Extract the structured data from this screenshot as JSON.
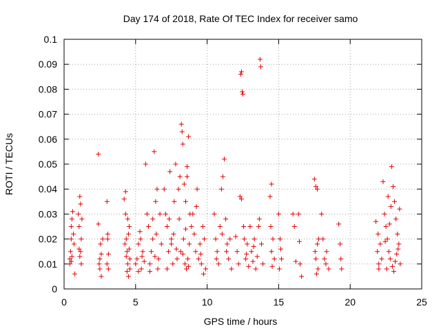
{
  "chart_data": {
    "type": "scatter",
    "title": "Day 174 of 2018, Rate Of TEC Index for receiver samo",
    "xlabel": "GPS time / hours",
    "ylabel": "ROTI / TECUs",
    "xlim": [
      0,
      25
    ],
    "ylim": [
      0,
      0.1
    ],
    "xticks": [
      "0",
      "5",
      "10",
      "15",
      "20",
      "25"
    ],
    "yticks": [
      "0",
      "0.01",
      "0.02",
      "0.03",
      "0.04",
      "0.05",
      "0.06",
      "0.07",
      "0.08",
      "0.09",
      "0.1"
    ],
    "grid": true,
    "marker": "+",
    "color": "#e00000",
    "series": [
      {
        "points": [
          [
            0.4,
            0.012
          ],
          [
            0.45,
            0.015
          ],
          [
            0.5,
            0.02
          ],
          [
            0.5,
            0.025
          ],
          [
            0.55,
            0.028
          ],
          [
            0.6,
            0.031
          ],
          [
            0.4,
            0.01
          ],
          [
            0.55,
            0.013
          ],
          [
            0.65,
            0.022
          ],
          [
            0.7,
            0.018
          ],
          [
            0.75,
            0.006
          ],
          [
            0.5,
            0.011
          ],
          [
            1.0,
            0.03
          ],
          [
            1.05,
            0.025
          ],
          [
            1.1,
            0.037
          ],
          [
            1.15,
            0.034
          ],
          [
            1.2,
            0.02
          ],
          [
            1.1,
            0.013
          ],
          [
            1.15,
            0.015
          ],
          [
            1.2,
            0.01
          ],
          [
            1.25,
            0.028
          ],
          [
            1.05,
            0.016
          ],
          [
            2.4,
            0.054
          ],
          [
            2.4,
            0.026
          ],
          [
            2.5,
            0.012
          ],
          [
            2.5,
            0.008
          ],
          [
            2.55,
            0.018
          ],
          [
            2.6,
            0.005
          ],
          [
            2.7,
            0.02
          ],
          [
            2.6,
            0.014
          ],
          [
            2.45,
            0.01
          ],
          [
            3.0,
            0.035
          ],
          [
            3.05,
            0.02
          ],
          [
            3.1,
            0.014
          ],
          [
            3.0,
            0.01
          ],
          [
            3.1,
            0.008
          ],
          [
            3.05,
            0.022
          ],
          [
            4.2,
            0.036
          ],
          [
            4.3,
            0.03
          ],
          [
            4.35,
            0.02
          ],
          [
            4.4,
            0.015
          ],
          [
            4.45,
            0.01
          ],
          [
            4.5,
            0.005
          ],
          [
            4.55,
            0.025
          ],
          [
            4.3,
            0.039
          ],
          [
            4.6,
            0.012
          ],
          [
            4.4,
            0.007
          ],
          [
            4.25,
            0.018
          ],
          [
            4.5,
            0.022
          ],
          [
            4.6,
            0.008
          ],
          [
            4.35,
            0.013
          ],
          [
            4.45,
            0.028
          ],
          [
            4.55,
            0.016
          ],
          [
            5.0,
            0.01
          ],
          [
            5.1,
            0.012
          ],
          [
            5.2,
            0.018
          ],
          [
            5.3,
            0.023
          ],
          [
            5.4,
            0.008
          ],
          [
            5.5,
            0.015
          ],
          [
            5.6,
            0.011
          ],
          [
            5.2,
            0.007
          ],
          [
            5.35,
            0.02
          ],
          [
            5.45,
            0.013
          ],
          [
            5.7,
            0.05
          ],
          [
            5.8,
            0.03
          ],
          [
            5.9,
            0.025
          ],
          [
            6.0,
            0.01
          ],
          [
            6.1,
            0.015
          ],
          [
            6.2,
            0.02
          ],
          [
            6.3,
            0.055
          ],
          [
            6.4,
            0.035
          ],
          [
            6.5,
            0.04
          ],
          [
            6.6,
            0.012
          ],
          [
            6.7,
            0.03
          ],
          [
            6.8,
            0.018
          ],
          [
            6.0,
            0.007
          ],
          [
            6.2,
            0.028
          ],
          [
            6.45,
            0.022
          ],
          [
            6.55,
            0.008
          ],
          [
            6.35,
            0.013
          ],
          [
            7.0,
            0.04
          ],
          [
            7.1,
            0.03
          ],
          [
            7.2,
            0.025
          ],
          [
            7.3,
            0.015
          ],
          [
            7.4,
            0.047
          ],
          [
            7.5,
            0.02
          ],
          [
            7.6,
            0.01
          ],
          [
            7.7,
            0.035
          ],
          [
            7.8,
            0.05
          ],
          [
            7.9,
            0.012
          ],
          [
            7.2,
            0.008
          ],
          [
            7.5,
            0.018
          ],
          [
            7.35,
            0.028
          ],
          [
            7.65,
            0.022
          ],
          [
            7.85,
            0.016
          ],
          [
            8.0,
            0.04
          ],
          [
            8.1,
            0.045
          ],
          [
            8.2,
            0.066
          ],
          [
            8.25,
            0.063
          ],
          [
            8.3,
            0.058
          ],
          [
            8.4,
            0.042
          ],
          [
            8.5,
            0.035
          ],
          [
            8.6,
            0.049
          ],
          [
            8.7,
            0.061
          ],
          [
            8.8,
            0.03
          ],
          [
            8.9,
            0.025
          ],
          [
            8.15,
            0.015
          ],
          [
            8.35,
            0.02
          ],
          [
            8.45,
            0.01
          ],
          [
            8.55,
            0.008
          ],
          [
            8.65,
            0.012
          ],
          [
            8.75,
            0.018
          ],
          [
            8.05,
            0.028
          ],
          [
            8.6,
            0.045
          ],
          [
            8.5,
            0.024
          ],
          [
            8.3,
            0.014
          ],
          [
            8.7,
            0.009
          ],
          [
            9.0,
            0.03
          ],
          [
            9.1,
            0.022
          ],
          [
            9.2,
            0.015
          ],
          [
            9.3,
            0.04
          ],
          [
            9.4,
            0.012
          ],
          [
            9.5,
            0.018
          ],
          [
            9.6,
            0.01
          ],
          [
            9.7,
            0.025
          ],
          [
            9.8,
            0.02
          ],
          [
            9.9,
            0.008
          ],
          [
            9.25,
            0.033
          ],
          [
            9.55,
            0.014
          ],
          [
            9.75,
            0.006
          ],
          [
            10.5,
            0.03
          ],
          [
            10.6,
            0.02
          ],
          [
            10.7,
            0.015
          ],
          [
            10.8,
            0.01
          ],
          [
            10.9,
            0.025
          ],
          [
            11.0,
            0.04
          ],
          [
            11.1,
            0.045
          ],
          [
            11.2,
            0.052
          ],
          [
            11.3,
            0.028
          ],
          [
            11.4,
            0.018
          ],
          [
            11.5,
            0.012
          ],
          [
            11.6,
            0.02
          ],
          [
            11.7,
            0.008
          ],
          [
            10.65,
            0.012
          ],
          [
            11.05,
            0.022
          ],
          [
            11.35,
            0.015
          ],
          [
            12.0,
            0.021
          ],
          [
            12.1,
            0.015
          ],
          [
            12.2,
            0.01
          ],
          [
            12.3,
            0.037
          ],
          [
            12.35,
            0.086
          ],
          [
            12.4,
            0.087
          ],
          [
            12.45,
            0.079
          ],
          [
            12.5,
            0.078
          ],
          [
            12.6,
            0.02
          ],
          [
            12.7,
            0.012
          ],
          [
            12.8,
            0.018
          ],
          [
            12.9,
            0.009
          ],
          [
            12.4,
            0.036
          ],
          [
            12.55,
            0.025
          ],
          [
            12.75,
            0.014
          ],
          [
            13.0,
            0.025
          ],
          [
            13.1,
            0.015
          ],
          [
            13.2,
            0.011
          ],
          [
            13.3,
            0.02
          ],
          [
            13.4,
            0.008
          ],
          [
            13.5,
            0.013
          ],
          [
            13.6,
            0.025
          ],
          [
            13.7,
            0.092
          ],
          [
            13.75,
            0.089
          ],
          [
            13.8,
            0.018
          ],
          [
            13.9,
            0.01
          ],
          [
            13.65,
            0.028
          ],
          [
            13.25,
            0.017
          ],
          [
            14.4,
            0.037
          ],
          [
            14.5,
            0.042
          ],
          [
            14.6,
            0.02
          ],
          [
            14.7,
            0.012
          ],
          [
            14.5,
            0.015
          ],
          [
            14.55,
            0.009
          ],
          [
            14.45,
            0.025
          ],
          [
            15.0,
            0.03
          ],
          [
            15.1,
            0.02
          ],
          [
            15.2,
            0.012
          ],
          [
            15.05,
            0.008
          ],
          [
            15.15,
            0.016
          ],
          [
            16.0,
            0.03
          ],
          [
            16.1,
            0.025
          ],
          [
            16.2,
            0.011
          ],
          [
            16.4,
            0.03
          ],
          [
            16.5,
            0.01
          ],
          [
            16.6,
            0.005
          ],
          [
            16.45,
            0.019
          ],
          [
            17.5,
            0.044
          ],
          [
            17.6,
            0.041
          ],
          [
            17.7,
            0.04
          ],
          [
            17.8,
            0.02
          ],
          [
            17.6,
            0.012
          ],
          [
            17.7,
            0.018
          ],
          [
            17.75,
            0.008
          ],
          [
            17.65,
            0.006
          ],
          [
            17.55,
            0.015
          ],
          [
            18.0,
            0.03
          ],
          [
            18.2,
            0.012
          ],
          [
            18.3,
            0.01
          ],
          [
            18.5,
            0.008
          ],
          [
            18.1,
            0.02
          ],
          [
            18.35,
            0.015
          ],
          [
            19.2,
            0.026
          ],
          [
            19.3,
            0.018
          ],
          [
            19.4,
            0.008
          ],
          [
            19.35,
            0.012
          ],
          [
            21.8,
            0.027
          ],
          [
            21.9,
            0.015
          ],
          [
            22.0,
            0.01
          ],
          [
            22.1,
            0.018
          ],
          [
            22.2,
            0.012
          ],
          [
            22.0,
            0.008
          ],
          [
            21.95,
            0.022
          ],
          [
            22.3,
            0.043
          ],
          [
            22.4,
            0.03
          ],
          [
            22.5,
            0.025
          ],
          [
            22.6,
            0.02
          ],
          [
            22.7,
            0.015
          ],
          [
            22.8,
            0.012
          ],
          [
            22.9,
            0.049
          ],
          [
            23.0,
            0.041
          ],
          [
            23.1,
            0.035
          ],
          [
            23.2,
            0.028
          ],
          [
            23.3,
            0.022
          ],
          [
            23.4,
            0.018
          ],
          [
            23.5,
            0.01
          ],
          [
            22.85,
            0.033
          ],
          [
            23.05,
            0.007
          ],
          [
            23.25,
            0.014
          ],
          [
            23.45,
            0.032
          ],
          [
            22.55,
            0.008
          ],
          [
            22.65,
            0.037
          ],
          [
            22.75,
            0.026
          ],
          [
            23.15,
            0.011
          ],
          [
            23.35,
            0.016
          ],
          [
            22.45,
            0.019
          ],
          [
            22.95,
            0.009
          ]
        ]
      }
    ]
  }
}
